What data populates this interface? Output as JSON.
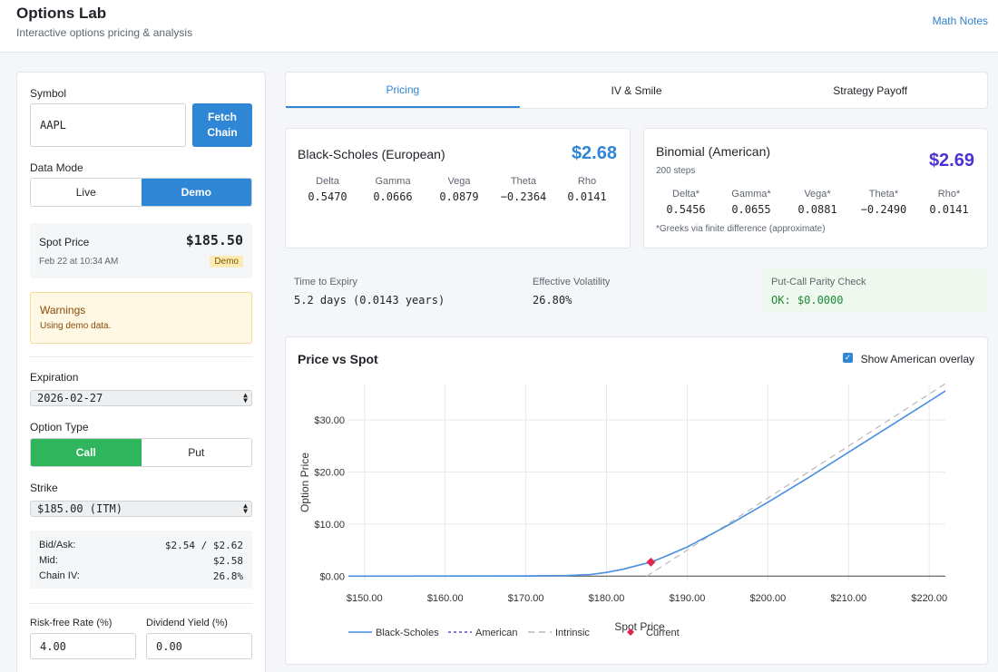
{
  "header": {
    "title": "Options Lab",
    "subtitle": "Interactive options pricing & analysis",
    "math_notes": "Math Notes"
  },
  "sidebar": {
    "symbol_label": "Symbol",
    "symbol_value": "AAPL",
    "fetch_label": "Fetch\nChain",
    "data_mode_label": "Data Mode",
    "data_mode_options": [
      "Live",
      "Demo"
    ],
    "data_mode_selected": "Demo",
    "spot": {
      "label": "Spot Price",
      "value": "$185.50",
      "timestamp": "Feb 22 at 10:34 AM",
      "badge": "Demo"
    },
    "warnings": {
      "title": "Warnings",
      "message": "Using demo data."
    },
    "expiration_label": "Expiration",
    "expiration_value": "2026-02-27",
    "option_type_label": "Option Type",
    "option_type_options": [
      "Call",
      "Put"
    ],
    "option_type_selected": "Call",
    "strike_label": "Strike",
    "strike_value": "$185.00 (ITM)",
    "quote": {
      "bid_ask_label": "Bid/Ask:",
      "bid_ask_value": "$2.54 / $2.62",
      "mid_label": "Mid:",
      "mid_value": "$2.58",
      "chain_iv_label": "Chain IV:",
      "chain_iv_value": "26.8%"
    },
    "rf_label": "Risk-free Rate (%)",
    "rf_value": "4.00",
    "div_label": "Dividend Yield (%)",
    "div_value": "0.00"
  },
  "tabs": [
    "Pricing",
    "IV & Smile",
    "Strategy Payoff"
  ],
  "active_tab": "Pricing",
  "black_scholes": {
    "title": "Black-Scholes (European)",
    "price": "$2.68",
    "greeks": [
      {
        "name": "Delta",
        "value": "0.5470"
      },
      {
        "name": "Gamma",
        "value": "0.0666"
      },
      {
        "name": "Vega",
        "value": "0.0879"
      },
      {
        "name": "Theta",
        "value": "−0.2364"
      },
      {
        "name": "Rho",
        "value": "0.0141"
      }
    ]
  },
  "binomial": {
    "title": "Binomial (American)",
    "steps": "200 steps",
    "price": "$2.69",
    "greeks": [
      {
        "name": "Delta*",
        "value": "0.5456"
      },
      {
        "name": "Gamma*",
        "value": "0.0655"
      },
      {
        "name": "Vega*",
        "value": "0.0881"
      },
      {
        "name": "Theta*",
        "value": "−0.2490"
      },
      {
        "name": "Rho*",
        "value": "0.0141"
      }
    ],
    "footnote": "*Greeks via finite difference (approximate)"
  },
  "stats": {
    "tte_label": "Time to Expiry",
    "tte_value": "5.2 days (0.0143 years)",
    "vol_label": "Effective Volatility",
    "vol_value": "26.80%",
    "parity_label": "Put-Call Parity Check",
    "parity_value": "OK: $0.0000"
  },
  "chart_panel": {
    "title": "Price vs Spot",
    "overlay_label": "Show American overlay",
    "overlay_checked": true
  },
  "colors": {
    "accent": "#2f86d4",
    "bs_price": "#2f86d4",
    "binomial_price": "#4a32d6",
    "call_green": "#2fb55b",
    "parity_green": "#1d8a36",
    "current_marker": "#e0284f"
  },
  "chart_data": {
    "type": "line",
    "title": "",
    "xlabel": "Spot Price",
    "ylabel": "Option Price",
    "xlim": [
      148,
      222
    ],
    "ylim": [
      -1,
      37
    ],
    "xticks": [
      150,
      160,
      170,
      180,
      190,
      200,
      210,
      220
    ],
    "xtick_labels": [
      "$150.00",
      "$160.00",
      "$170.00",
      "$180.00",
      "$190.00",
      "$200.00",
      "$210.00",
      "$220.00"
    ],
    "yticks": [
      0,
      10,
      20,
      30
    ],
    "ytick_labels": [
      "$0.00",
      "$10.00",
      "$20.00",
      "$30.00"
    ],
    "grid": true,
    "legend_position": "bottom",
    "series": [
      {
        "name": "Black-Scholes",
        "style": "solid",
        "x": [
          148,
          170,
          175,
          178,
          180,
          182,
          184,
          185.5,
          187,
          190,
          195,
          200,
          205,
          210,
          215,
          220,
          222
        ],
        "y": [
          0,
          0.02,
          0.1,
          0.3,
          0.7,
          1.3,
          2.1,
          2.68,
          3.6,
          5.6,
          9.7,
          14.2,
          18.9,
          23.8,
          28.7,
          33.6,
          35.6
        ]
      },
      {
        "name": "American",
        "style": "dashed",
        "x": [
          148,
          170,
          175,
          178,
          180,
          182,
          184,
          185.5,
          187,
          190,
          195,
          200,
          205,
          210,
          215,
          220,
          222
        ],
        "y": [
          0,
          0.02,
          0.1,
          0.3,
          0.7,
          1.3,
          2.1,
          2.69,
          3.6,
          5.6,
          9.7,
          14.2,
          18.9,
          23.8,
          28.7,
          33.6,
          35.6
        ]
      },
      {
        "name": "Intrinsic",
        "style": "longdash",
        "x": [
          185,
          222
        ],
        "y": [
          0,
          37
        ]
      },
      {
        "name": "Current",
        "style": "marker",
        "x": [
          185.5
        ],
        "y": [
          2.68
        ]
      }
    ]
  }
}
